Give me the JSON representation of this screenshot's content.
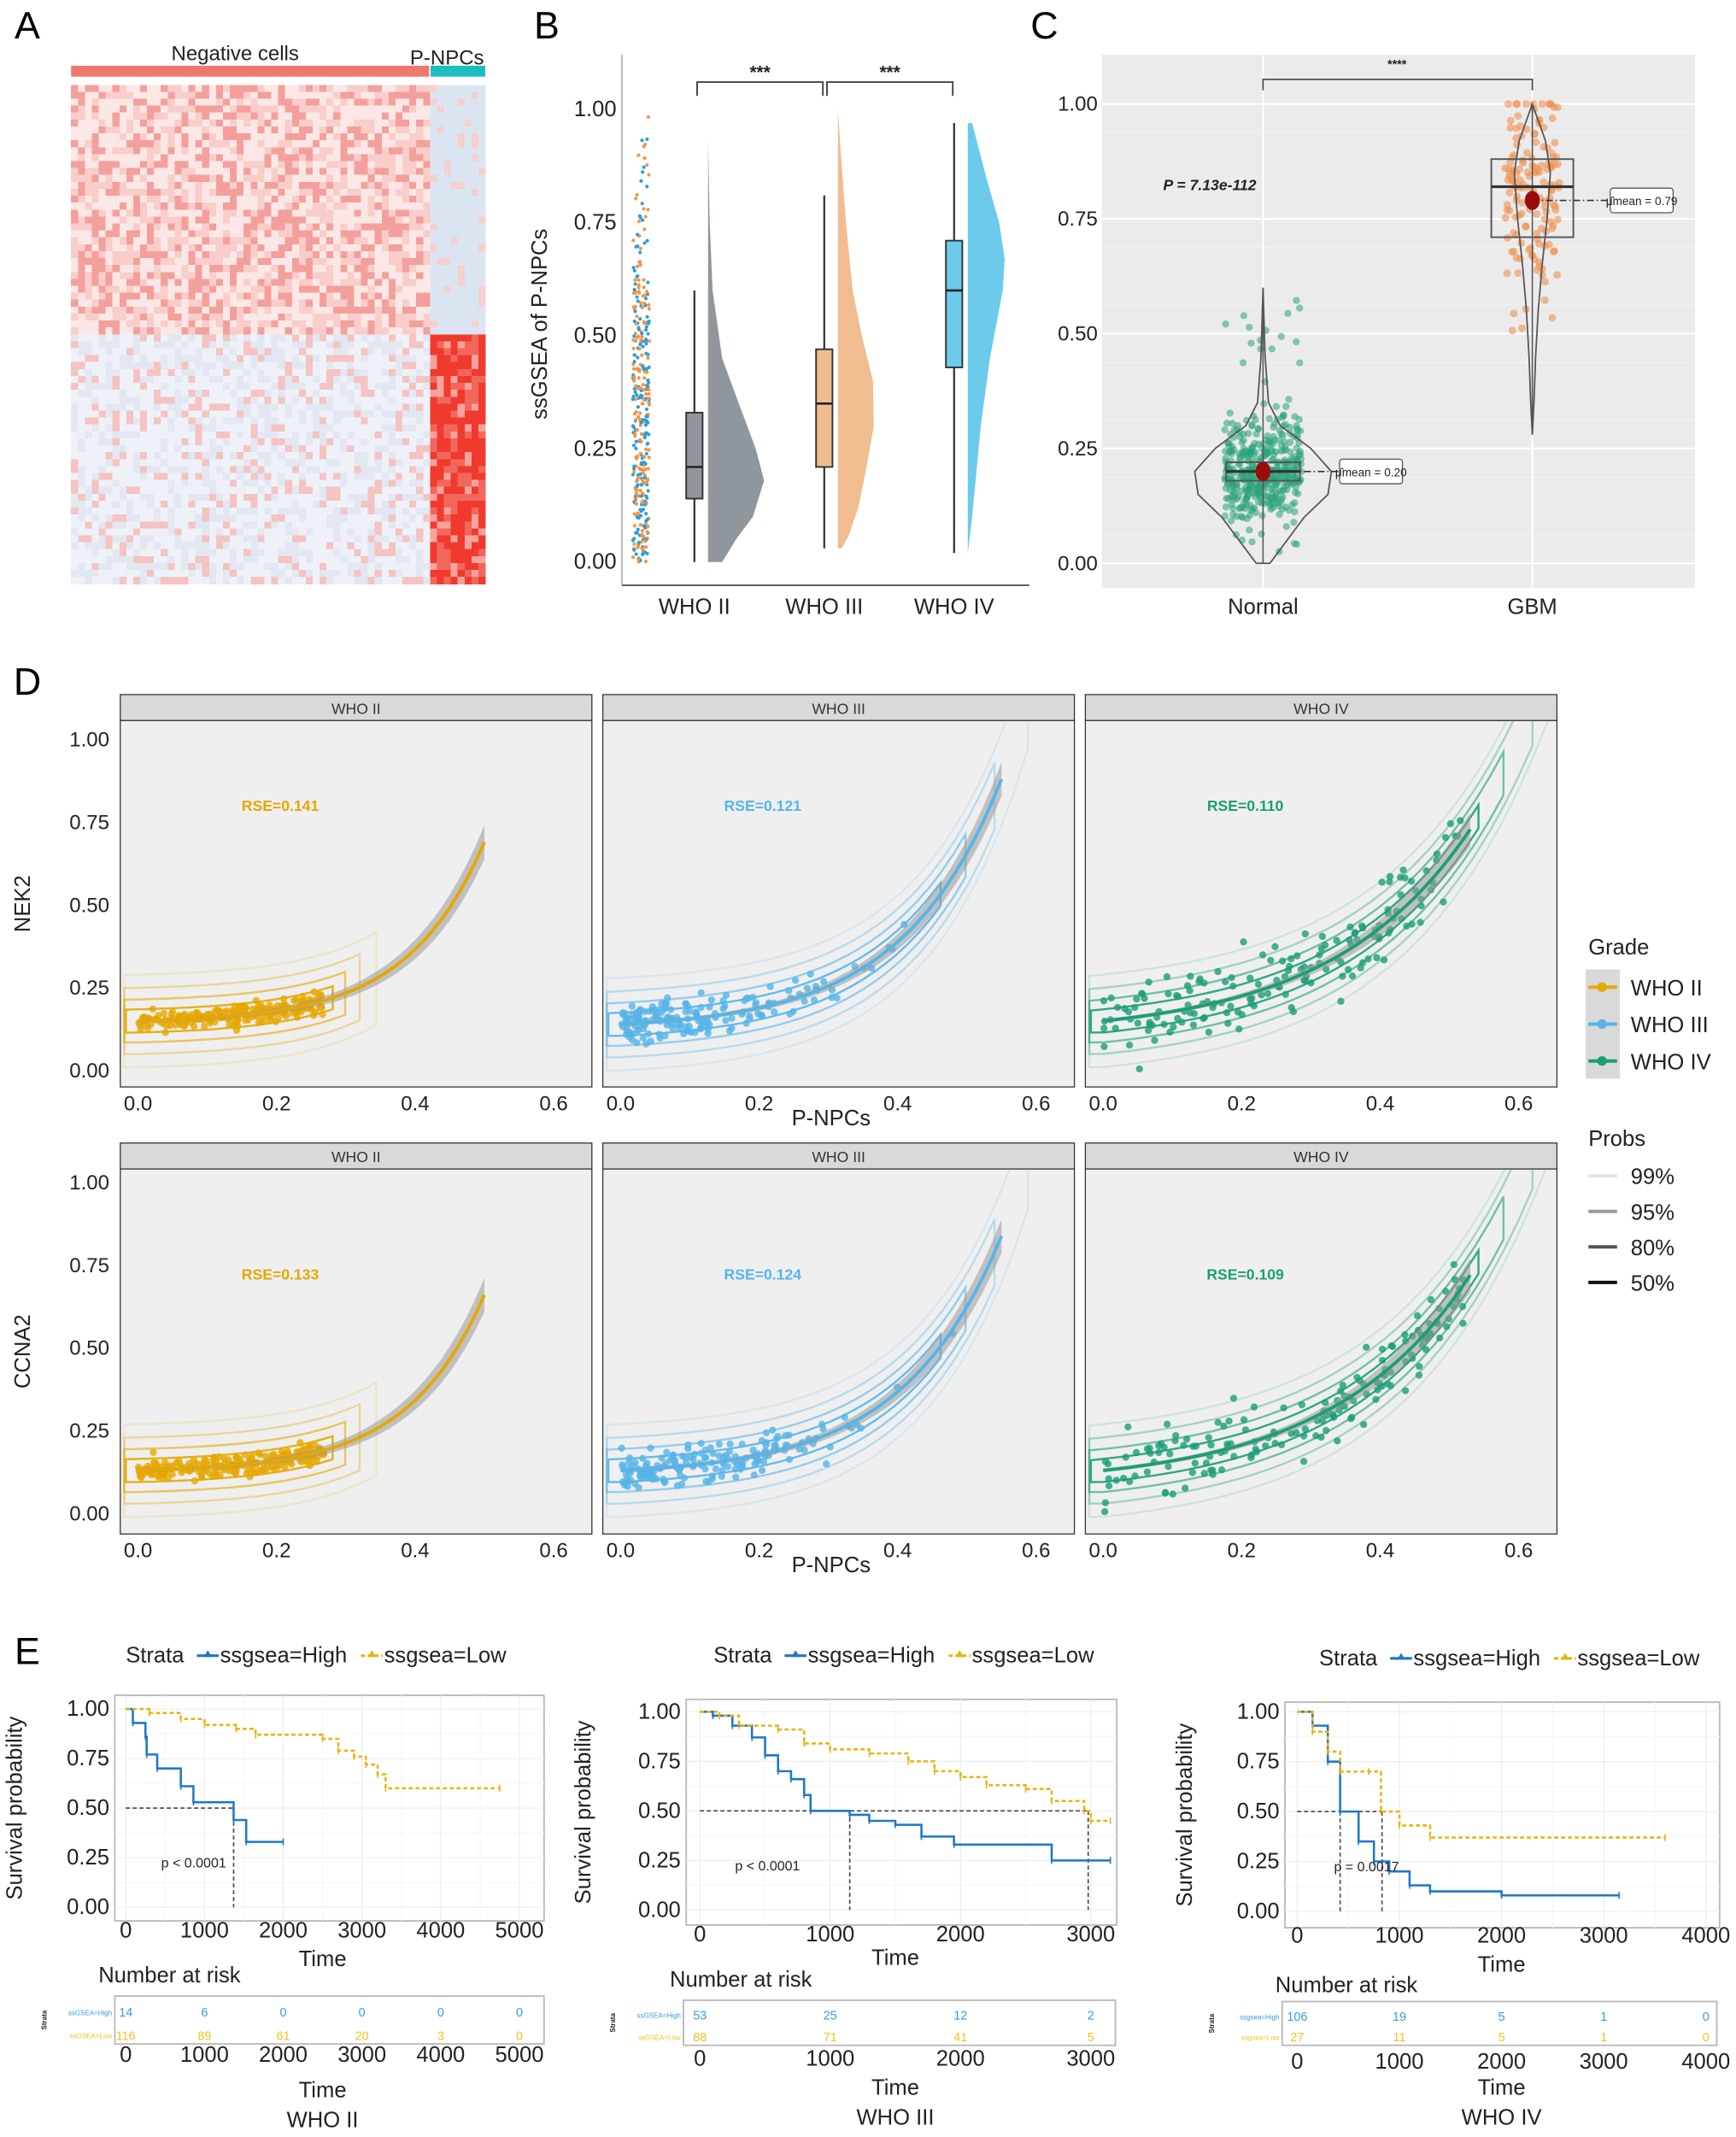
{
  "panel_labels": [
    "A",
    "B",
    "C",
    "D",
    "E"
  ],
  "chart_data": [
    {
      "panel": "A",
      "type": "heatmap",
      "column_groups": [
        {
          "label": "Negative cells",
          "color": "#f0776c"
        },
        {
          "label": "P-NPCs",
          "color": "#1dbdc0"
        }
      ]
    },
    {
      "panel": "B",
      "type": "box",
      "ylabel": "ssGSEA of P-NPCs",
      "ylim": [
        0,
        1.05
      ],
      "yticks": [
        "0.00",
        "0.25",
        "0.50",
        "0.75",
        "1.00"
      ],
      "categories": [
        "WHO II",
        "WHO III",
        "WHO IV"
      ],
      "colors": [
        "#8f979c",
        "#f0bd90",
        "#6ccbea"
      ],
      "jitter_colors": [
        "#f0954a",
        "#2a9fd6"
      ],
      "box": [
        {
          "min": 0.0,
          "q1": 0.14,
          "median": 0.21,
          "q3": 0.33,
          "max": 0.6
        },
        {
          "min": 0.03,
          "q1": 0.21,
          "median": 0.35,
          "q3": 0.47,
          "max": 0.81
        },
        {
          "min": 0.02,
          "q1": 0.43,
          "median": 0.6,
          "q3": 0.71,
          "max": 0.97
        }
      ],
      "density": [
        [
          [
            0.0,
            0.25
          ],
          [
            0.05,
            0.5
          ],
          [
            0.1,
            0.8
          ],
          [
            0.18,
            1.0
          ],
          [
            0.25,
            0.85
          ],
          [
            0.35,
            0.55
          ],
          [
            0.45,
            0.25
          ],
          [
            0.6,
            0.08
          ],
          [
            0.75,
            0.03
          ],
          [
            0.93,
            0.0
          ]
        ],
        [
          [
            0.03,
            0.1
          ],
          [
            0.06,
            0.3
          ],
          [
            0.12,
            0.55
          ],
          [
            0.2,
            0.75
          ],
          [
            0.3,
            0.97
          ],
          [
            0.4,
            0.95
          ],
          [
            0.5,
            0.65
          ],
          [
            0.6,
            0.4
          ],
          [
            0.75,
            0.22
          ],
          [
            0.9,
            0.08
          ],
          [
            1.0,
            0.0
          ]
        ],
        [
          [
            0.02,
            0.0
          ],
          [
            0.1,
            0.12
          ],
          [
            0.3,
            0.35
          ],
          [
            0.45,
            0.6
          ],
          [
            0.6,
            0.95
          ],
          [
            0.67,
            1.0
          ],
          [
            0.75,
            0.85
          ],
          [
            0.85,
            0.5
          ],
          [
            0.97,
            0.12
          ]
        ]
      ],
      "significance": [
        {
          "from": 0,
          "to": 1,
          "label": "***"
        },
        {
          "from": 1,
          "to": 2,
          "label": "***"
        }
      ]
    },
    {
      "panel": "C",
      "type": "violin",
      "yticks": [
        "0.00",
        "0.25",
        "0.50",
        "0.75",
        "1.00"
      ],
      "ylim": [
        0,
        1.05
      ],
      "categories": [
        "Normal",
        "GBM"
      ],
      "colors": [
        "#2aa37a",
        "#ee9252"
      ],
      "mean_color": "#9b0d0d",
      "box": [
        {
          "min": 0.0,
          "q1": 0.18,
          "median": 0.2,
          "q3": 0.22,
          "max": 0.6
        },
        {
          "min": 0.28,
          "q1": 0.71,
          "median": 0.82,
          "q3": 0.88,
          "max": 1.0
        }
      ],
      "mean": [
        0.2,
        0.79
      ],
      "mean_labels": [
        "μ̂mean = 0.20",
        "μ̂mean = 0.79"
      ],
      "density": [
        [
          [
            0.0,
            0.1
          ],
          [
            0.1,
            0.6
          ],
          [
            0.15,
            0.95
          ],
          [
            0.2,
            1.0
          ],
          [
            0.25,
            0.7
          ],
          [
            0.3,
            0.25
          ],
          [
            0.35,
            0.08
          ],
          [
            0.45,
            0.03
          ],
          [
            0.6,
            0.0
          ]
        ],
        [
          [
            0.28,
            0.0
          ],
          [
            0.35,
            0.05
          ],
          [
            0.45,
            0.1
          ],
          [
            0.55,
            0.18
          ],
          [
            0.65,
            0.3
          ],
          [
            0.75,
            0.45
          ],
          [
            0.85,
            0.55
          ],
          [
            0.92,
            0.4
          ],
          [
            1.0,
            0.0
          ]
        ]
      ],
      "p_label": "P = 7.13e-112",
      "significance": "****"
    },
    {
      "panel": "D",
      "type": "scatter",
      "xlabel": "P-NPCs",
      "xticks": [
        "0.0",
        "0.2",
        "0.4",
        "0.6"
      ],
      "yticks": [
        "0.00",
        "0.25",
        "0.50",
        "0.75",
        "1.00"
      ],
      "xlim": [
        0,
        0.6
      ],
      "ylim": [
        0,
        1.0
      ],
      "rows": [
        {
          "ylabel": "NEK2",
          "facets": [
            {
              "strip": "WHO II",
              "grade": 0,
              "rse": "RSE=0.141",
              "fit": {
                "a": 0.15,
                "b": 0.00607,
                "k": 9,
                "xmax": 0.5
              }
            },
            {
              "strip": "WHO III",
              "grade": 1,
              "rse": "RSE=0.121",
              "fit": {
                "a": 0.14,
                "b": 0.0161,
                "k": 7,
                "xmax": 0.55
              }
            },
            {
              "strip": "WHO IV",
              "grade": 2,
              "rse": "RSE=0.110",
              "fit": {
                "a": 0.15,
                "b": 0.044,
                "k": 5,
                "xmax": 0.53
              }
            }
          ]
        },
        {
          "ylabel": "CCNA2",
          "facets": [
            {
              "strip": "WHO II",
              "grade": 0,
              "rse": "RSE=0.133",
              "fit": {
                "a": 0.13,
                "b": 0.00596,
                "k": 9,
                "xmax": 0.5
              }
            },
            {
              "strip": "WHO III",
              "grade": 1,
              "rse": "RSE=0.124",
              "fit": {
                "a": 0.13,
                "b": 0.0154,
                "k": 7,
                "xmax": 0.55
              }
            },
            {
              "strip": "WHO IV",
              "grade": 2,
              "rse": "RSE=0.109",
              "fit": {
                "a": 0.13,
                "b": 0.0449,
                "k": 5,
                "xmax": 0.53
              }
            }
          ]
        }
      ],
      "legend": {
        "grade_title": "Grade",
        "grades": [
          {
            "label": "WHO II",
            "color": "#e6a700"
          },
          {
            "label": "WHO III",
            "color": "#56b4e9"
          },
          {
            "label": "WHO IV",
            "color": "#1b9e77"
          }
        ],
        "probs_title": "Probs",
        "probs": [
          "99%",
          "95%",
          "80%",
          "50%"
        ]
      }
    },
    {
      "panel": "E",
      "type": "line",
      "colors": {
        "high": "#1f78c8",
        "low": "#e8b40e",
        "risk_high": "#3a9ae0",
        "risk_low": "#efc21e"
      },
      "plots": [
        {
          "title": "WHO II",
          "legend_title": "Strata",
          "legend": [
            "ssgsea=High",
            "ssgsea=Low"
          ],
          "ylabel": "Survival probability",
          "xlabel": "Time",
          "yticks": [
            "0.00",
            "0.25",
            "0.50",
            "0.75",
            "1.00"
          ],
          "xticks": [
            "0",
            "1000",
            "2000",
            "3000",
            "4000",
            "5000"
          ],
          "xmax": 5000,
          "pvalue": "p < 0.0001",
          "medians": [
            1370
          ],
          "series": [
            {
              "name": "High",
              "points": [
                [
                  0,
                  1
                ],
                [
                  90,
                  0.93
                ],
                [
                  250,
                  0.86
                ],
                [
                  265,
                  0.77
                ],
                [
                  400,
                  0.7
                ],
                [
                  700,
                  0.61
                ],
                [
                  860,
                  0.53
                ],
                [
                  1370,
                  0.44
                ],
                [
                  1530,
                  0.33
                ],
                [
                  2000,
                  0.33
                ]
              ]
            },
            {
              "name": "Low",
              "points": [
                [
                  0,
                  1
                ],
                [
                  300,
                  0.98
                ],
                [
                  700,
                  0.95
                ],
                [
                  1000,
                  0.92
                ],
                [
                  1400,
                  0.9
                ],
                [
                  1650,
                  0.87
                ],
                [
                  2500,
                  0.85
                ],
                [
                  2700,
                  0.79
                ],
                [
                  2900,
                  0.76
                ],
                [
                  3050,
                  0.72
                ],
                [
                  3200,
                  0.67
                ],
                [
                  3300,
                  0.6
                ],
                [
                  4750,
                  0.6
                ]
              ]
            }
          ],
          "risk_table": {
            "title": "Number at risk",
            "strata_label": "Strata",
            "rows": [
              {
                "label": "ssGSEA=High",
                "values": [
                  "14",
                  "6",
                  "0",
                  "0",
                  "0",
                  "0"
                ]
              },
              {
                "label": "ssGSEA=Low",
                "values": [
                  "116",
                  "89",
                  "61",
                  "20",
                  "3",
                  "0"
                ]
              }
            ],
            "xlabel": "Time"
          }
        },
        {
          "title": "WHO III",
          "legend_title": "Strata",
          "legend": [
            "ssgsea=High",
            "ssgsea=Low"
          ],
          "ylabel": "Survival probability",
          "xlabel": "Time",
          "yticks": [
            "0.00",
            "0.25",
            "0.50",
            "0.75",
            "1.00"
          ],
          "xticks": [
            "0",
            "1000",
            "2000",
            "3000"
          ],
          "xmax": 3000,
          "pvalue": "p < 0.0001",
          "medians": [
            1150,
            2980
          ],
          "series": [
            {
              "name": "High",
              "points": [
                [
                  0,
                  1
                ],
                [
                  100,
                  0.98
                ],
                [
                  250,
                  0.93
                ],
                [
                  400,
                  0.87
                ],
                [
                  500,
                  0.78
                ],
                [
                  600,
                  0.7
                ],
                [
                  700,
                  0.66
                ],
                [
                  800,
                  0.58
                ],
                [
                  850,
                  0.5
                ],
                [
                  1150,
                  0.48
                ],
                [
                  1300,
                  0.45
                ],
                [
                  1500,
                  0.43
                ],
                [
                  1700,
                  0.37
                ],
                [
                  1950,
                  0.33
                ],
                [
                  2700,
                  0.25
                ],
                [
                  3150,
                  0.25
                ]
              ]
            },
            {
              "name": "Low",
              "points": [
                [
                  0,
                  1
                ],
                [
                  150,
                  0.98
                ],
                [
                  300,
                  0.93
                ],
                [
                  600,
                  0.91
                ],
                [
                  800,
                  0.84
                ],
                [
                  1000,
                  0.81
                ],
                [
                  1300,
                  0.79
                ],
                [
                  1600,
                  0.75
                ],
                [
                  1800,
                  0.7
                ],
                [
                  2000,
                  0.67
                ],
                [
                  2200,
                  0.63
                ],
                [
                  2500,
                  0.61
                ],
                [
                  2700,
                  0.55
                ],
                [
                  2950,
                  0.5
                ],
                [
                  3000,
                  0.45
                ],
                [
                  3150,
                  0.45
                ]
              ]
            }
          ],
          "risk_table": {
            "title": "Number at risk",
            "strata_label": "Strata",
            "rows": [
              {
                "label": "ssGSEA=High",
                "values": [
                  "53",
                  "25",
                  "12",
                  "2"
                ]
              },
              {
                "label": "ssGSEA=Low",
                "values": [
                  "88",
                  "71",
                  "41",
                  "5"
                ]
              }
            ],
            "xlabel": "Time"
          }
        },
        {
          "title": "WHO IV",
          "legend_title": "Strata",
          "legend": [
            "ssgsea=High",
            "ssgsea=Low"
          ],
          "ylabel": "Survival probability",
          "xlabel": "Time",
          "yticks": [
            "0.00",
            "0.25",
            "0.50",
            "0.75",
            "1.00"
          ],
          "xticks": [
            "0",
            "1000",
            "2000",
            "3000",
            "4000"
          ],
          "xmax": 4000,
          "pvalue": "p = 0.0017",
          "medians": [
            420,
            830
          ],
          "series": [
            {
              "name": "High",
              "points": [
                [
                  0,
                  1
                ],
                [
                  150,
                  0.93
                ],
                [
                  300,
                  0.75
                ],
                [
                  420,
                  0.5
                ],
                [
                  600,
                  0.35
                ],
                [
                  750,
                  0.25
                ],
                [
                  900,
                  0.2
                ],
                [
                  1100,
                  0.13
                ],
                [
                  1300,
                  0.1
                ],
                [
                  2000,
                  0.08
                ],
                [
                  3150,
                  0.08
                ]
              ]
            },
            {
              "name": "Low",
              "points": [
                [
                  0,
                  1
                ],
                [
                  150,
                  0.9
                ],
                [
                  300,
                  0.8
                ],
                [
                  420,
                  0.7
                ],
                [
                  700,
                  0.7
                ],
                [
                  820,
                  0.5
                ],
                [
                  1000,
                  0.43
                ],
                [
                  1300,
                  0.37
                ],
                [
                  3600,
                  0.37
                ]
              ]
            }
          ],
          "risk_table": {
            "title": "Number at risk",
            "strata_label": "Strata",
            "rows": [
              {
                "label": "ssgsea=High",
                "values": [
                  "106",
                  "19",
                  "5",
                  "1",
                  "0"
                ]
              },
              {
                "label": "ssgsea=Low",
                "values": [
                  "27",
                  "11",
                  "5",
                  "1",
                  "0"
                ]
              }
            ],
            "xlabel": "Time"
          }
        }
      ]
    }
  ]
}
